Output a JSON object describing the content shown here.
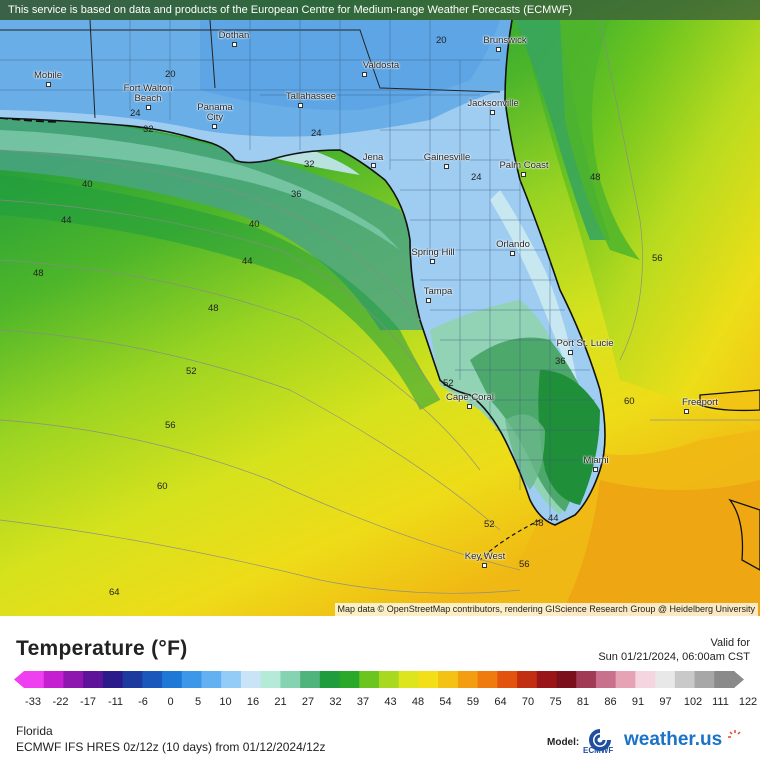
{
  "banner": "This service is based on data and products of the European Centre for Medium-range Weather Forecasts (ECMWF)",
  "attribution": "Map data © OpenStreetMap contributors, rendering GIScience Research Group @ Heidelberg University",
  "cities": [
    {
      "name": "Dothan"
    },
    {
      "name": "Brunswick"
    },
    {
      "name": "Mobile"
    },
    {
      "name": "Valdosta"
    },
    {
      "name": "Fort Walton\nBeach"
    },
    {
      "name": "Panama\nCity"
    },
    {
      "name": "Tallahassee"
    },
    {
      "name": "Jacksonville"
    },
    {
      "name": "Jena"
    },
    {
      "name": "Gainesville"
    },
    {
      "name": "Palm Coast"
    },
    {
      "name": "Orlando"
    },
    {
      "name": "Spring Hill"
    },
    {
      "name": "Tampa"
    },
    {
      "name": "Port St. Lucie"
    },
    {
      "name": "Cape Coral"
    },
    {
      "name": "Freeport"
    },
    {
      "name": "Miami"
    },
    {
      "name": "Key West"
    }
  ],
  "isotherm_labels": [
    "20",
    "20",
    "24",
    "32",
    "24",
    "32",
    "40",
    "36",
    "44",
    "40",
    "44",
    "48",
    "48",
    "24",
    "48",
    "56",
    "52",
    "56",
    "36",
    "60",
    "60",
    "52",
    "52",
    "48",
    "44",
    "56",
    "64"
  ],
  "legend": {
    "title": "Temperature (°F)",
    "valid_for_label": "Valid for",
    "valid_time": "Sun 01/21/2024, 06:00am CST",
    "ticks": [
      "-33",
      "-22",
      "-17",
      "-11",
      "-6",
      "0",
      "5",
      "10",
      "16",
      "21",
      "27",
      "32",
      "37",
      "43",
      "48",
      "54",
      "59",
      "64",
      "70",
      "75",
      "81",
      "86",
      "91",
      "97",
      "102",
      "111",
      "122"
    ],
    "colors": [
      "#ee3ff0",
      "#c41fd0",
      "#8e17b0",
      "#5e1398",
      "#2b1a8a",
      "#1d3a9e",
      "#1a58bb",
      "#1e78d6",
      "#3c97e8",
      "#63b1f0",
      "#93ccf6",
      "#c8e4f6",
      "#b5ead9",
      "#86d3b3",
      "#4fb47c",
      "#1f9c3e",
      "#2aa82a",
      "#6cc41f",
      "#a8d81f",
      "#dde51e",
      "#f2df18",
      "#f3c214",
      "#f29e10",
      "#ef7a0e",
      "#e2530d",
      "#c22e12",
      "#9a1517",
      "#7b0f1b",
      "#a13a55",
      "#c9708c",
      "#e6a3b6",
      "#f5d5df",
      "#e8e8e8",
      "#c9c9c9",
      "#a7a7a7",
      "#8a8a8a"
    ]
  },
  "region": "Florida",
  "model_run": "ECMWF IFS HRES 0z/12z (10 days) from  01/12/2024/12z",
  "model_label": "Model:",
  "ecmwf_text": "ECMWF",
  "brand": "weather.us"
}
